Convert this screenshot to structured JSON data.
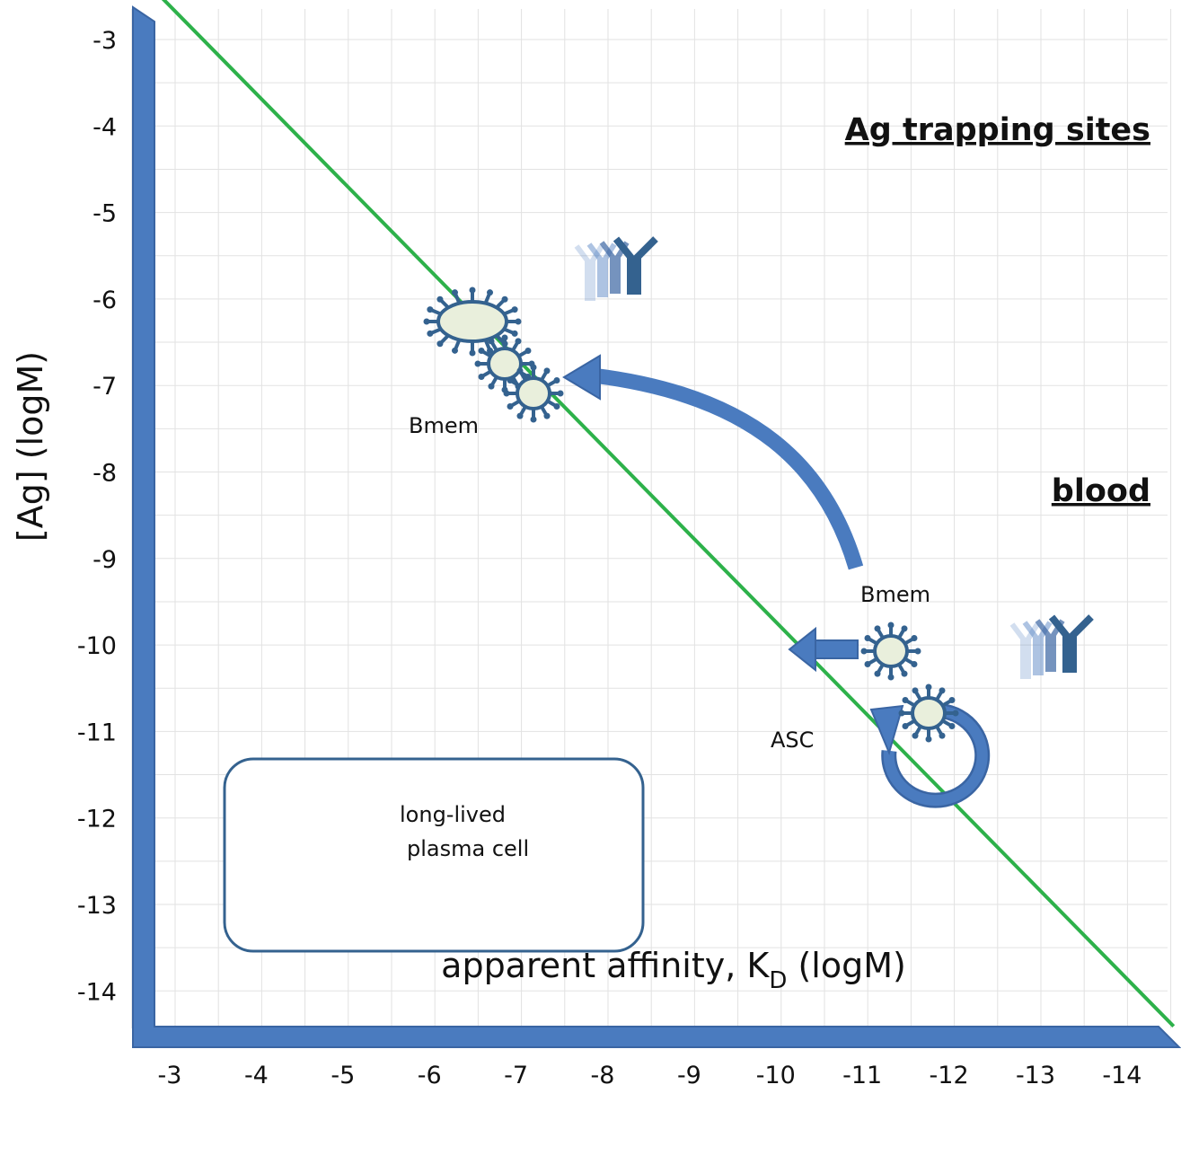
{
  "chart_data": {
    "type": "line",
    "xlabel_main": "apparent affinity, K",
    "xlabel_sub": "D",
    "xlabel_tail": " (logM)",
    "ylabel": "[Ag] (logM)",
    "x_ticks": [
      "-3",
      "-4",
      "-5",
      "-6",
      "-7",
      "-8",
      "-9",
      "-10",
      "-11",
      "-12",
      "-13",
      "-14"
    ],
    "y_ticks": [
      "-3",
      "-4",
      "-5",
      "-6",
      "-7",
      "-8",
      "-9",
      "-10",
      "-11",
      "-12",
      "-13",
      "-14"
    ],
    "xlim": [
      -2.5,
      -14.5
    ],
    "ylim": [
      -2.5,
      -14.5
    ],
    "grid": true,
    "series": [
      {
        "x": [
          -2.7,
          -14.45
        ],
        "y": [
          -2.7,
          -14.45
        ],
        "color": "#2db14a"
      }
    ]
  },
  "regions": {
    "upper": "Ag trapping sites",
    "lower": "blood"
  },
  "labels": {
    "bmem_upper": "Bmem",
    "bmem_lower": "Bmem",
    "asc": "ASC"
  },
  "legend": {
    "line1": "long-lived",
    "line2": "plasma cell"
  },
  "colors": {
    "axis_frame": "#4a7bbf",
    "cell_fill": "#e9efdc",
    "cell_outline": "#34628f",
    "arrow": "#4a7bbf",
    "grid": "#e2e2e2"
  }
}
